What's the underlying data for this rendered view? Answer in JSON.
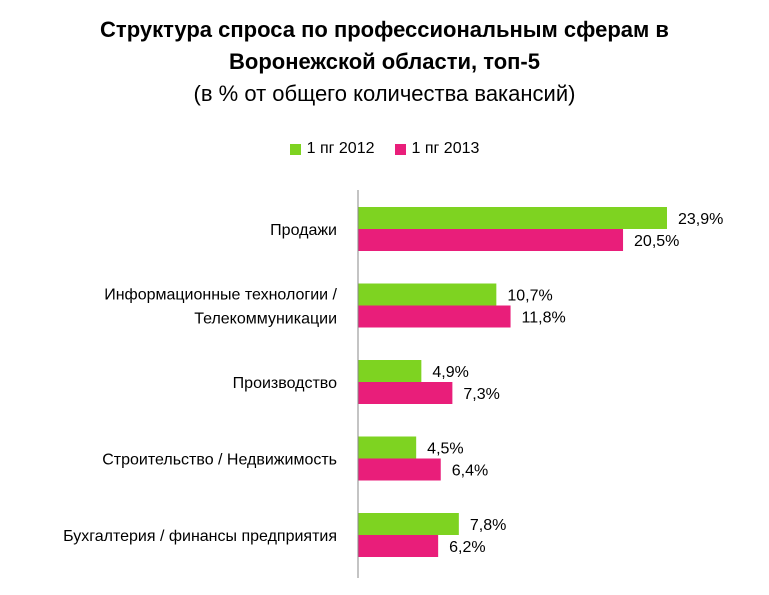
{
  "chart_data": {
    "type": "bar",
    "orientation": "horizontal",
    "title_lines": [
      "Структура спроса по профессиональным сферам в",
      "Воронежской области, топ-5"
    ],
    "subtitle": "(в % от общего количества вакансий)",
    "categories": [
      [
        "Продажи"
      ],
      [
        "Информационные технологии /",
        "Телекоммуникации"
      ],
      [
        "Производство"
      ],
      [
        "Строительство / Недвижимость"
      ],
      [
        "Бухгалтерия / финансы предприятия"
      ]
    ],
    "series": [
      {
        "name": "1 пг 2012",
        "color": "#7ed321",
        "values": [
          23.9,
          10.7,
          4.9,
          4.5,
          7.8
        ],
        "labels": [
          "23,9%",
          "10,7%",
          "4,9%",
          "4,5%",
          "7,8%"
        ]
      },
      {
        "name": "1 пг 2013",
        "color": "#e91e7a",
        "values": [
          20.5,
          11.8,
          7.3,
          6.4,
          6.2
        ],
        "labels": [
          "20,5%",
          "11,8%",
          "7,3%",
          "6,4%",
          "6,2%"
        ]
      }
    ],
    "xlim": [
      0,
      30
    ],
    "grid": false,
    "legend_position": "top"
  }
}
